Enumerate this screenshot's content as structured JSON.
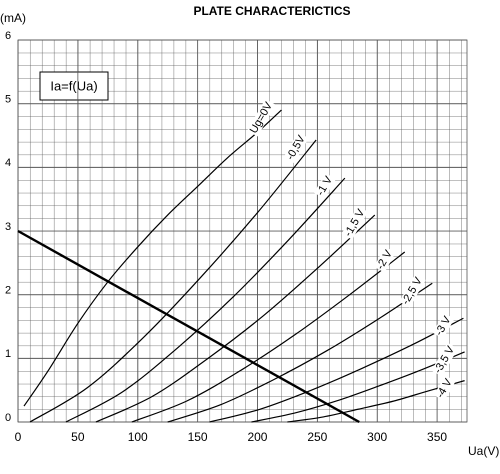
{
  "chart_data": {
    "type": "line",
    "title": "PLATE CHARACTERICTICS",
    "y_label": "(mA)",
    "x_label": "Ua(V)",
    "annotation": "Ia=f(Ua)",
    "xlim": [
      0,
      375
    ],
    "ylim": [
      0,
      6
    ],
    "xticks": [
      0,
      50,
      100,
      150,
      200,
      250,
      300,
      350
    ],
    "yticks": [
      0,
      1,
      2,
      3,
      4,
      5,
      6
    ],
    "grid": true,
    "color": "#000000",
    "series": [
      {
        "name": "Ug=0V",
        "x": [
          5,
          25,
          50,
          75,
          100,
          125,
          150,
          175,
          200,
          220
        ],
        "values": [
          0.25,
          0.8,
          1.55,
          2.2,
          2.75,
          3.25,
          3.7,
          4.15,
          4.55,
          4.9
        ]
      },
      {
        "name": "-0,5V",
        "x": [
          10,
          58,
          106,
          153,
          201,
          249
        ],
        "values": [
          0,
          0.54,
          1.35,
          2.28,
          3.31,
          4.43
        ]
      },
      {
        "name": "-1 V",
        "x": [
          40,
          87,
          133,
          180,
          226,
          273
        ],
        "values": [
          0,
          0.47,
          1.16,
          1.97,
          2.86,
          3.83
        ]
      },
      {
        "name": "-1,5 V",
        "x": [
          65,
          112,
          158,
          205,
          251,
          298
        ],
        "values": [
          0,
          0.4,
          0.99,
          1.67,
          2.43,
          3.25
        ]
      },
      {
        "name": "-2 V",
        "x": [
          95,
          141,
          186,
          232,
          277,
          323
        ],
        "values": [
          0,
          0.33,
          0.81,
          1.38,
          2.0,
          2.67
        ]
      },
      {
        "name": "-2,5 V",
        "x": [
          125,
          169,
          213,
          258,
          302,
          346
        ],
        "values": [
          0,
          0.27,
          0.66,
          1.12,
          1.63,
          2.18
        ]
      },
      {
        "name": "-3 V",
        "x": [
          160,
          202,
          245,
          287,
          330,
          372
        ],
        "values": [
          0,
          0.2,
          0.5,
          0.84,
          1.22,
          1.63
        ]
      },
      {
        "name": "-3,5 V",
        "x": [
          195,
          231,
          266,
          302,
          337,
          373
        ],
        "values": [
          0,
          0.14,
          0.33,
          0.57,
          0.82,
          1.1
        ]
      },
      {
        "name": "-4 V",
        "x": [
          225,
          255,
          284,
          314,
          343,
          373
        ],
        "values": [
          0,
          0.08,
          0.2,
          0.33,
          0.49,
          0.65
        ]
      }
    ],
    "load_line": {
      "x": [
        0,
        285
      ],
      "values": [
        3,
        0
      ]
    }
  }
}
